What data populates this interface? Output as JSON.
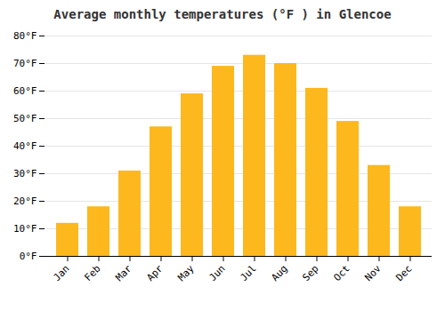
{
  "chart_data": {
    "type": "bar",
    "title": "Average monthly temperatures (°F ) in Glencoe",
    "categories": [
      "Jan",
      "Feb",
      "Mar",
      "Apr",
      "May",
      "Jun",
      "Jul",
      "Aug",
      "Sep",
      "Oct",
      "Nov",
      "Dec"
    ],
    "values": [
      12,
      18,
      31,
      47,
      59,
      69,
      73,
      70,
      61,
      49,
      33,
      18
    ],
    "color": "#FDB81E",
    "ylim": [
      0,
      80
    ],
    "yticks": [
      {
        "value": 0,
        "label": "0°F"
      },
      {
        "value": 10,
        "label": "10°F"
      },
      {
        "value": 20,
        "label": "20°F"
      },
      {
        "value": 30,
        "label": "30°F"
      },
      {
        "value": 40,
        "label": "40°F"
      },
      {
        "value": 50,
        "label": "50°F"
      },
      {
        "value": 60,
        "label": "60°F"
      },
      {
        "value": 70,
        "label": "70°F"
      },
      {
        "value": 80,
        "label": "80°F"
      }
    ],
    "grid": true
  }
}
